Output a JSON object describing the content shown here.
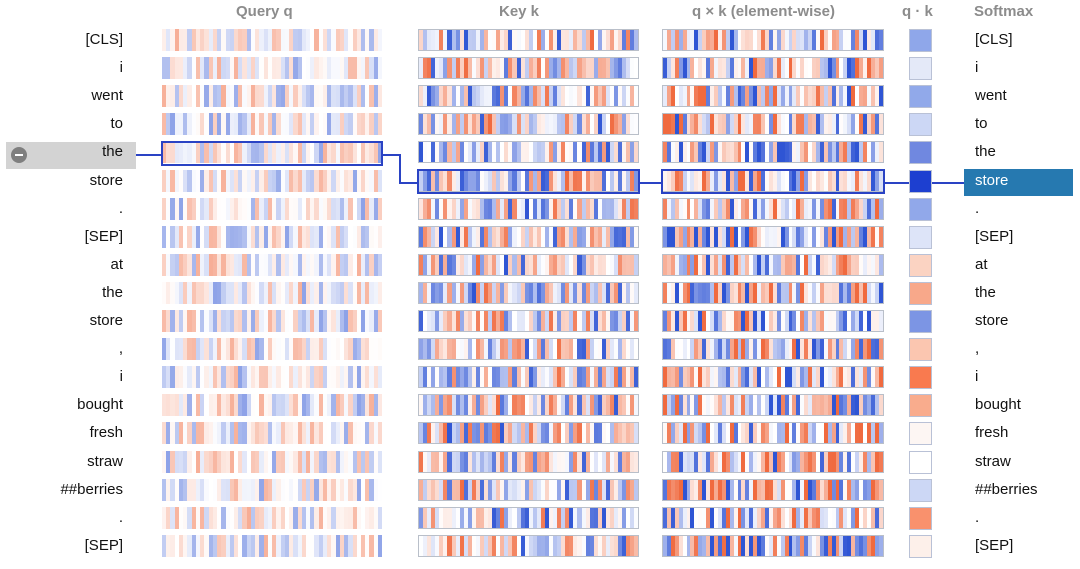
{
  "headers": {
    "query": "Query q",
    "key": "Key k",
    "product": "q × k (element-wise)",
    "dot": "q · k",
    "softmax": "Softmax"
  },
  "tokens": [
    "[CLS]",
    "i",
    "went",
    "to",
    "the",
    "store",
    ".",
    "[SEP]",
    "at",
    "the",
    "store",
    ",",
    "i",
    "bought",
    "fresh",
    "straw",
    "##berries",
    ".",
    "[SEP]"
  ],
  "selected_query_index": 4,
  "selected_key_index": 5,
  "dot_colors": [
    "#8fa7ea",
    "#e4e9f8",
    "#91a9ea",
    "#ccd7f5",
    "#7088e0",
    "#1d3fd0",
    "#91a8ea",
    "#dde4f8",
    "#fbd3c2",
    "#f8a88a",
    "#7c95e4",
    "#fbc6b0",
    "#f97a4f",
    "#f9ac8d",
    "#fdf6f3",
    "#ffffff",
    "#ccd7f5",
    "#f9916d",
    "#fdf0ea"
  ],
  "colors": {
    "accent": "#2a43c4",
    "selection_right": "#2679b0",
    "selection_left": "#d3d3d3",
    "positive": "#f06a3f",
    "negative": "#2f55d4"
  }
}
